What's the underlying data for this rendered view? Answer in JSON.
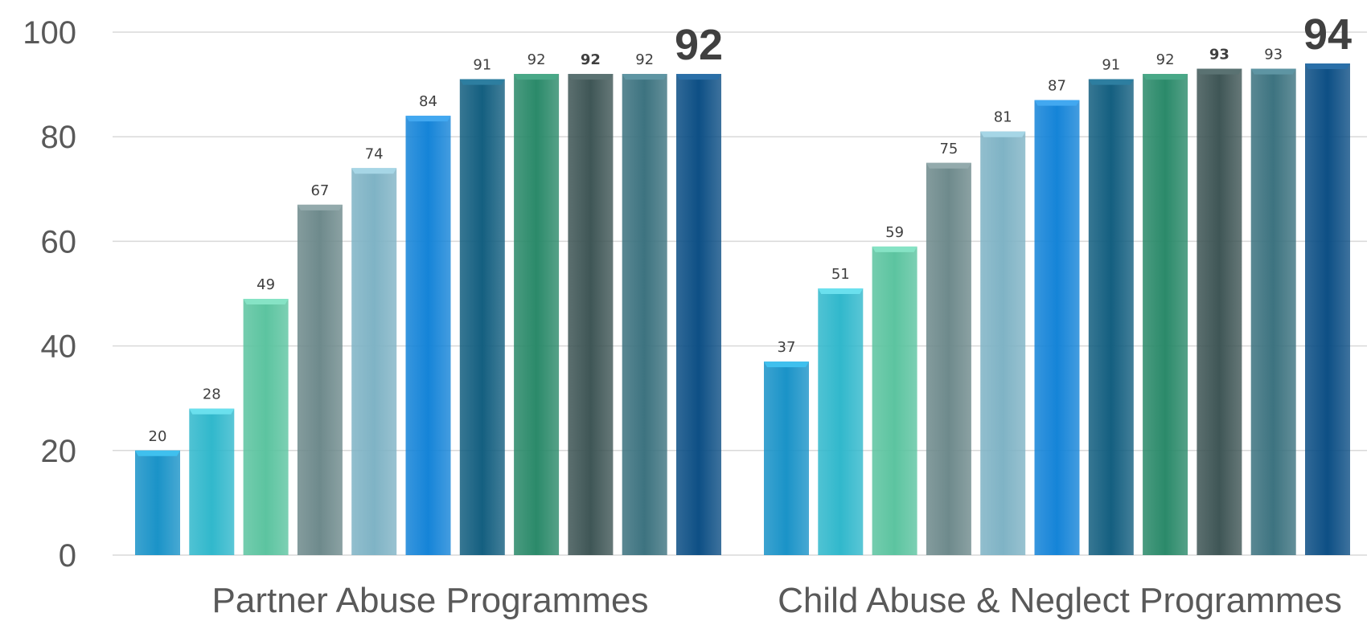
{
  "chart_data": {
    "type": "bar",
    "ylim": [
      0,
      100
    ],
    "yticks": [
      0,
      20,
      40,
      60,
      80,
      100
    ],
    "grid": true,
    "groups": [
      {
        "label": "Partner Abuse Programmes",
        "values": [
          20,
          28,
          49,
          67,
          74,
          84,
          91,
          92,
          92,
          92,
          92
        ],
        "value_labels": [
          "20",
          "28",
          "49",
          "67",
          "74",
          "84",
          "91",
          "92",
          "92",
          "92",
          "92"
        ],
        "emphasis": [
          "",
          "",
          "",
          "",
          "",
          "",
          "",
          "",
          "bold",
          "",
          "big"
        ]
      },
      {
        "label": "Child Abuse & Neglect Programmes",
        "values": [
          37,
          51,
          59,
          75,
          81,
          87,
          91,
          92,
          93,
          93,
          94
        ],
        "value_labels": [
          "37",
          "51",
          "59",
          "75",
          "81",
          "87",
          "91",
          "92",
          "93",
          "93",
          "94"
        ],
        "emphasis": [
          "",
          "",
          "",
          "",
          "",
          "",
          "",
          "",
          "bold",
          "",
          "big"
        ]
      }
    ],
    "bar_colors": [
      "#1a93c8",
      "#31b8cc",
      "#5cc4a0",
      "#6e8a8c",
      "#7fb3c5",
      "#1584d8",
      "#145f80",
      "#2b8a6a",
      "#3f5656",
      "#3d7380",
      "#0d4f85"
    ],
    "bar_top_colors": [
      "#3fc0ee",
      "#6ae0ee",
      "#86e3c5",
      "#93aaac",
      "#a6d6e6",
      "#42a8f0",
      "#2d7ea0",
      "#48a887",
      "#5a7272",
      "#5e95a3",
      "#2a6fa8"
    ]
  }
}
